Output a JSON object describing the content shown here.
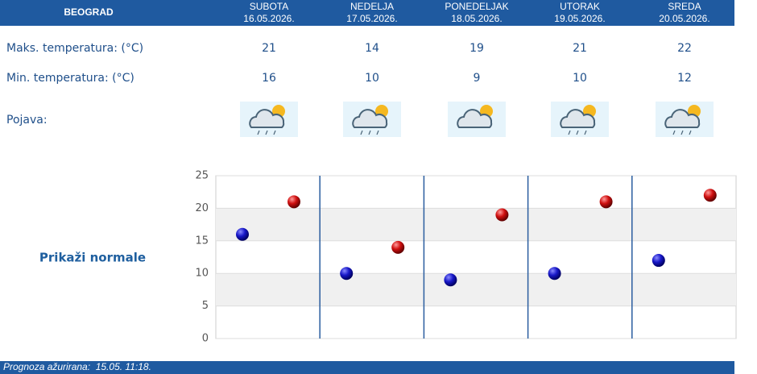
{
  "header": {
    "city": "BEOGRAD",
    "days": [
      {
        "name": "SUBOTA",
        "date": "16.05.2026."
      },
      {
        "name": "NEDELJA",
        "date": "17.05.2026."
      },
      {
        "name": "PONEDELJAK",
        "date": "18.05.2026."
      },
      {
        "name": "UTORAK",
        "date": "19.05.2026."
      },
      {
        "name": "SREDA",
        "date": "20.05.2026."
      }
    ]
  },
  "table": {
    "max_label": "Maks. temperatura: (°C)",
    "max": [
      21,
      14,
      19,
      21,
      22
    ],
    "min_label": "Min. temperatura: (°C)",
    "min": [
      16,
      10,
      9,
      10,
      12
    ],
    "phenomenon_label": "Pojava:"
  },
  "chart": {
    "ylim": [
      0,
      25
    ],
    "yticks": [
      0,
      5,
      10,
      15,
      20,
      25
    ],
    "min_color": "#1010c0",
    "max_color": "#d01010"
  },
  "link": "Prikaži normale",
  "footer": "Prognoza ažurirana:  15.05. 11:18."
}
